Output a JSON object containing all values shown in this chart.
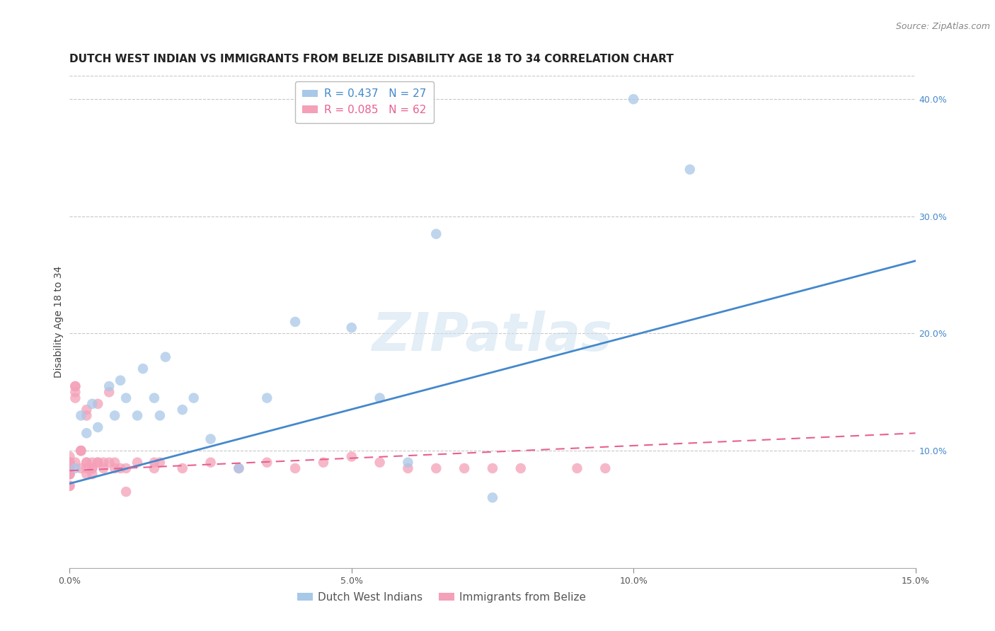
{
  "title": "DUTCH WEST INDIAN VS IMMIGRANTS FROM BELIZE DISABILITY AGE 18 TO 34 CORRELATION CHART",
  "source": "Source: ZipAtlas.com",
  "ylabel": "Disability Age 18 to 34",
  "xlim": [
    0.0,
    0.15
  ],
  "ylim": [
    0.0,
    0.42
  ],
  "x_ticks": [
    0.0,
    0.05,
    0.1,
    0.15
  ],
  "x_tick_labels": [
    "0.0%",
    "5.0%",
    "10.0%",
    "15.0%"
  ],
  "y_ticks_right": [
    0.1,
    0.2,
    0.3,
    0.4
  ],
  "y_tick_labels_right": [
    "10.0%",
    "20.0%",
    "30.0%",
    "40.0%"
  ],
  "grid_color": "#c8c8c8",
  "background_color": "#ffffff",
  "blue_R": 0.437,
  "blue_N": 27,
  "pink_R": 0.085,
  "pink_N": 62,
  "blue_color": "#a8c8e8",
  "pink_color": "#f4a0b8",
  "blue_line_color": "#4488cc",
  "pink_line_color": "#e86090",
  "pink_line_text_color": "#e86090",
  "blue_scatter_x": [
    0.001,
    0.002,
    0.003,
    0.004,
    0.005,
    0.007,
    0.008,
    0.009,
    0.01,
    0.012,
    0.013,
    0.015,
    0.016,
    0.017,
    0.02,
    0.022,
    0.025,
    0.03,
    0.035,
    0.04,
    0.05,
    0.055,
    0.06,
    0.065,
    0.075,
    0.1,
    0.11
  ],
  "blue_scatter_y": [
    0.085,
    0.13,
    0.115,
    0.14,
    0.12,
    0.155,
    0.13,
    0.16,
    0.145,
    0.13,
    0.17,
    0.145,
    0.13,
    0.18,
    0.135,
    0.145,
    0.11,
    0.085,
    0.145,
    0.21,
    0.205,
    0.145,
    0.09,
    0.285,
    0.06,
    0.4,
    0.34
  ],
  "pink_scatter_x": [
    0.0,
    0.0,
    0.0,
    0.0,
    0.0,
    0.0,
    0.0,
    0.0,
    0.0,
    0.0,
    0.0,
    0.0,
    0.001,
    0.001,
    0.001,
    0.001,
    0.001,
    0.002,
    0.002,
    0.002,
    0.002,
    0.003,
    0.003,
    0.003,
    0.003,
    0.003,
    0.003,
    0.004,
    0.004,
    0.004,
    0.004,
    0.005,
    0.005,
    0.005,
    0.006,
    0.006,
    0.007,
    0.007,
    0.008,
    0.008,
    0.009,
    0.01,
    0.01,
    0.012,
    0.015,
    0.015,
    0.016,
    0.02,
    0.025,
    0.03,
    0.035,
    0.04,
    0.045,
    0.05,
    0.055,
    0.06,
    0.065,
    0.07,
    0.075,
    0.08,
    0.09,
    0.095
  ],
  "pink_scatter_y": [
    0.085,
    0.085,
    0.085,
    0.09,
    0.09,
    0.09,
    0.08,
    0.08,
    0.08,
    0.07,
    0.07,
    0.095,
    0.15,
    0.145,
    0.155,
    0.155,
    0.09,
    0.1,
    0.1,
    0.1,
    0.085,
    0.085,
    0.09,
    0.13,
    0.135,
    0.08,
    0.09,
    0.09,
    0.08,
    0.085,
    0.085,
    0.09,
    0.09,
    0.14,
    0.085,
    0.09,
    0.09,
    0.15,
    0.085,
    0.09,
    0.085,
    0.085,
    0.065,
    0.09,
    0.085,
    0.09,
    0.09,
    0.085,
    0.09,
    0.085,
    0.09,
    0.085,
    0.09,
    0.095,
    0.09,
    0.085,
    0.085,
    0.085,
    0.085,
    0.085,
    0.085,
    0.085
  ],
  "blue_trend_x": [
    0.0,
    0.15
  ],
  "blue_trend_y": [
    0.072,
    0.262
  ],
  "pink_trend_x": [
    0.0,
    0.15
  ],
  "pink_trend_y": [
    0.083,
    0.115
  ],
  "legend_labels": [
    "Dutch West Indians",
    "Immigrants from Belize"
  ],
  "title_fontsize": 11,
  "source_fontsize": 9,
  "axis_label_fontsize": 10,
  "tick_fontsize": 9,
  "legend_fontsize": 11
}
